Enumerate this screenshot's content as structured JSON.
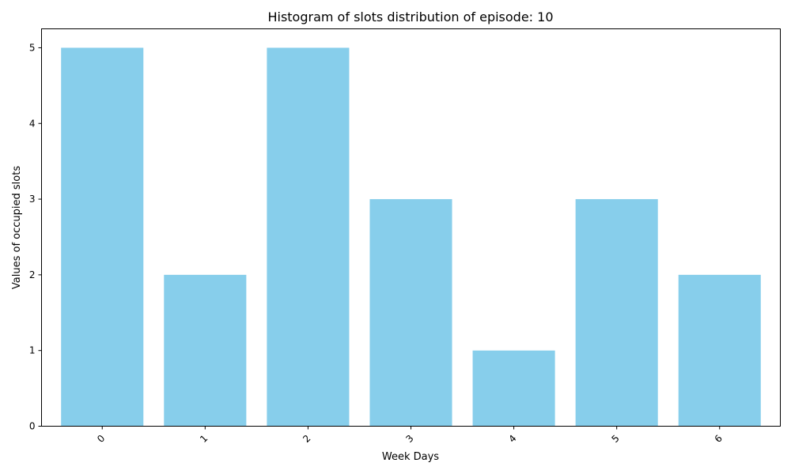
{
  "chart_data": {
    "type": "bar",
    "title": "Histogram of slots distribution of episode: 10",
    "xlabel": "Week Days",
    "ylabel": "Values of occupied slots",
    "categories": [
      "0",
      "1",
      "2",
      "3",
      "4",
      "5",
      "6"
    ],
    "values": [
      5,
      2,
      5,
      3,
      1,
      3,
      2
    ],
    "ylim": [
      0,
      5.25
    ],
    "yticks": [
      "0",
      "1",
      "2",
      "3",
      "4",
      "5"
    ],
    "bar_color": "#87ceeb",
    "grid": false,
    "legend": "none",
    "x_tick_rotation_deg": 45
  }
}
